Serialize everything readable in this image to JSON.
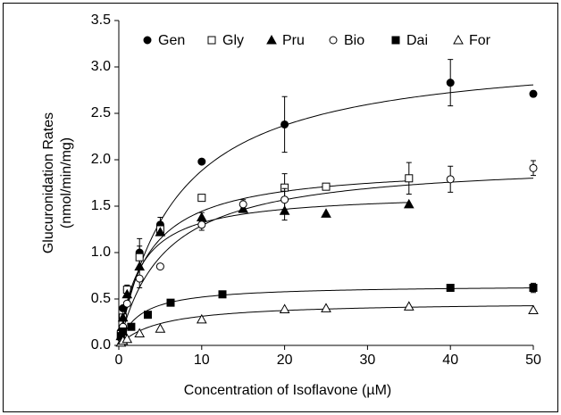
{
  "chart_data": {
    "type": "scatter",
    "xlabel": "Concentration of Isoflavone (µM)",
    "ylabel": [
      "Glucuronidation Rates",
      "(nmol/min/mg)"
    ],
    "xlim": [
      0,
      50
    ],
    "xticks": [
      0,
      10,
      20,
      30,
      40,
      50
    ],
    "ylim": [
      0,
      3.5
    ],
    "yticks": [
      {
        "value": 0,
        "label": "0.0"
      },
      0.5,
      {
        "value": 1,
        "label": "1.0"
      },
      1.5,
      {
        "value": 2,
        "label": "2.0"
      },
      2.5,
      {
        "value": 3,
        "label": "3.0"
      },
      3.5
    ],
    "legend": "top",
    "series": [
      {
        "name": "Gen",
        "color": "#000000",
        "marker": "circle",
        "filled": true,
        "x": [
          0.25,
          0.5,
          1,
          2.5,
          5,
          10,
          20,
          40,
          50
        ],
        "values": [
          0.15,
          0.4,
          0.6,
          1.0,
          1.3,
          1.98,
          2.38,
          2.83,
          2.71
        ],
        "errors": [
          null,
          null,
          0.05,
          0.15,
          0.08,
          null,
          0.3,
          0.25,
          0.03
        ],
        "fit_vmax": 3.2,
        "fit_km": 7
      },
      {
        "name": "Gly",
        "color": "#000000",
        "marker": "square",
        "filled": false,
        "x": [
          0.25,
          0.5,
          1,
          2.5,
          5,
          10,
          20,
          25,
          35
        ],
        "values": [
          0.12,
          0.3,
          0.6,
          0.95,
          1.25,
          1.59,
          1.7,
          1.71,
          1.8
        ],
        "errors": [
          null,
          null,
          null,
          0.12,
          null,
          null,
          0.15,
          null,
          0.17
        ],
        "fit_vmax": 1.95,
        "fit_km": 3.5
      },
      {
        "name": "Pru",
        "color": "#000000",
        "marker": "triangle",
        "filled": true,
        "x": [
          0.25,
          0.5,
          1,
          2.5,
          5,
          10,
          15,
          20,
          25,
          35
        ],
        "values": [
          0.1,
          0.3,
          0.55,
          0.85,
          1.22,
          1.38,
          1.47,
          1.45,
          1.42,
          1.52
        ],
        "errors": [
          null,
          null,
          null,
          null,
          null,
          0.05,
          null,
          0.1,
          null,
          null
        ],
        "fit_vmax": 1.65,
        "fit_km": 2.5
      },
      {
        "name": "Bio",
        "color": "#000000",
        "marker": "circle",
        "filled": false,
        "x": [
          0.25,
          0.5,
          1,
          2.5,
          5,
          10,
          15,
          20,
          40,
          50
        ],
        "values": [
          0.08,
          0.2,
          0.45,
          0.72,
          0.85,
          1.3,
          1.52,
          1.57,
          1.79,
          1.91
        ],
        "errors": [
          null,
          null,
          null,
          0.1,
          null,
          0.06,
          0.05,
          0.12,
          0.14,
          0.08
        ],
        "fit_vmax": 2.0,
        "fit_km": 5.5
      },
      {
        "name": "Dai",
        "color": "#000000",
        "marker": "square",
        "filled": true,
        "x": [
          0.25,
          0.5,
          1.5,
          3.5,
          6.25,
          12.5,
          40,
          50
        ],
        "values": [
          0.1,
          0.15,
          0.2,
          0.33,
          0.46,
          0.55,
          0.62,
          0.62
        ],
        "errors": [
          null,
          null,
          null,
          null,
          null,
          null,
          null,
          0.05
        ],
        "fit_vmax": 0.65,
        "fit_km": 2.5
      },
      {
        "name": "For",
        "color": "#000000",
        "marker": "triangle",
        "filled": false,
        "x": [
          0.25,
          0.5,
          1,
          2.5,
          5,
          10,
          20,
          25,
          35,
          50
        ],
        "values": [
          0.03,
          0.05,
          0.07,
          0.13,
          0.18,
          0.28,
          0.39,
          0.4,
          0.42,
          0.38
        ],
        "errors": [
          null,
          null,
          null,
          null,
          null,
          null,
          null,
          null,
          null,
          null
        ],
        "fit_vmax": 0.47,
        "fit_km": 5
      }
    ]
  }
}
